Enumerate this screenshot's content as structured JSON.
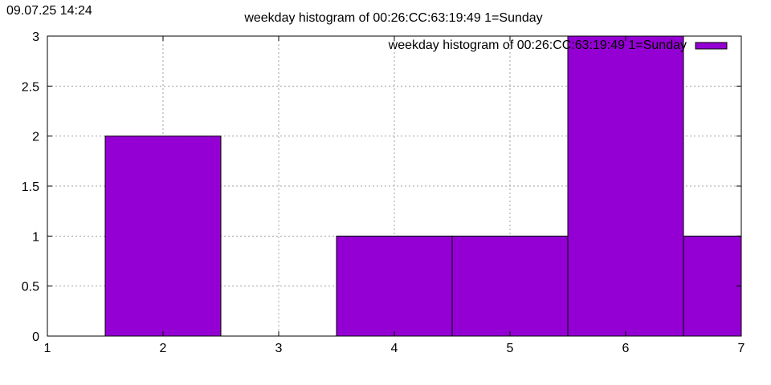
{
  "timestamp": "09.07.25 14:24",
  "chart_data": {
    "type": "bar",
    "title": "weekday histogram of 00:26:CC:63:19:49 1=Sunday",
    "xlabel": "",
    "ylabel": "",
    "xlim": [
      1,
      7
    ],
    "ylim": [
      0,
      3
    ],
    "x_ticks": [
      "1",
      "2",
      "3",
      "4",
      "5",
      "6",
      "7"
    ],
    "y_ticks": [
      "0",
      "0.5",
      "1",
      "1.5",
      "2",
      "2.5",
      "3"
    ],
    "bar_width": 1,
    "categories": [
      "2",
      "4",
      "5",
      "6",
      "7"
    ],
    "x": [
      2,
      4,
      5,
      6,
      7
    ],
    "values": [
      2,
      1,
      1,
      3,
      1
    ],
    "series": [
      {
        "name": "weekday histogram of 00:26:CC:63:19:49 1=Sunday",
        "values": [
          2,
          1,
          1,
          3,
          1
        ]
      }
    ],
    "grid": true,
    "legend_position": "top-right",
    "colors": {
      "bar": "#9400d3",
      "grid": "#a0a0a0",
      "axis": "#000000"
    }
  }
}
